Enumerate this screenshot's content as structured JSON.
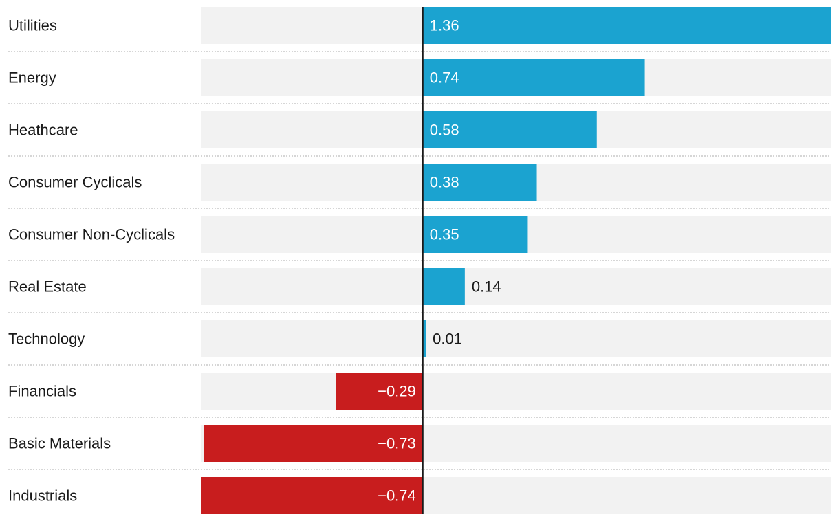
{
  "chart_data": {
    "type": "bar",
    "orientation": "horizontal",
    "categories": [
      "Utilities",
      "Energy",
      "Heathcare",
      "Consumer Cyclicals",
      "Consumer Non-Cyclicals",
      "Real Estate",
      "Technology",
      "Financials",
      "Basic Materials",
      "Industrials"
    ],
    "values": [
      1.36,
      0.74,
      0.58,
      0.38,
      0.35,
      0.14,
      0.01,
      -0.29,
      -0.73,
      -0.74
    ],
    "value_labels": [
      "1.36",
      "0.74",
      "0.58",
      "0.38",
      "0.35",
      "0.14",
      "0.01",
      "−0.29",
      "−0.73",
      "−0.74"
    ],
    "xlim": [
      -0.74,
      1.36
    ],
    "title": "",
    "xlabel": "",
    "ylabel": "",
    "grid": false,
    "colors": {
      "positive": "#1ba3d0",
      "negative": "#c81d1e",
      "track": "#f2f2f2",
      "zero_line": "#1a1a1a",
      "separator": "#c8c8c8",
      "label_inside": "#ffffff",
      "label_outside": "#1a1a1a"
    }
  }
}
